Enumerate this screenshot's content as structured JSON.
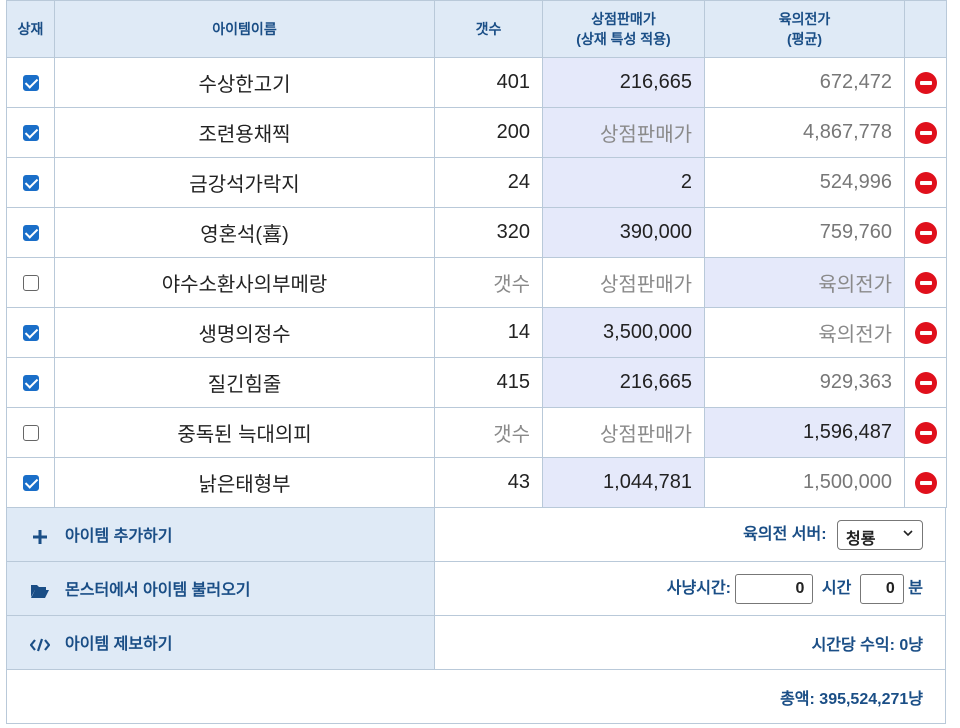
{
  "header": {
    "sell": "상재",
    "name": "아이템이름",
    "count": "갯수",
    "price_line1": "상점판매가",
    "price_line2": "(상재 특성 적용)",
    "est_line1": "육의전가",
    "est_line2": "(평균)"
  },
  "rows": [
    {
      "checked": true,
      "name": "수상한고기",
      "count": "401",
      "price": "216,665",
      "est": "672,472"
    },
    {
      "checked": true,
      "name": "조련용채찍",
      "count": "200",
      "price": "상점판매가",
      "est": "4,867,778"
    },
    {
      "checked": true,
      "name": "금강석가락지",
      "count": "24",
      "price": "2",
      "est": "524,996"
    },
    {
      "checked": true,
      "name": "영혼석(喜)",
      "count": "320",
      "price": "390,000",
      "est": "759,760"
    },
    {
      "checked": false,
      "name": "야수소환사의부메랑",
      "count": "갯수",
      "price": "상점판매가",
      "est": "육의전가"
    },
    {
      "checked": true,
      "name": "생명의정수",
      "count": "14",
      "price": "3,500,000",
      "est": "육의전가"
    },
    {
      "checked": true,
      "name": "질긴힘줄",
      "count": "415",
      "price": "216,665",
      "est": "929,363"
    },
    {
      "checked": false,
      "name": "중독된 늑대의피",
      "count": "갯수",
      "price": "상점판매가",
      "est": "1,596,487"
    },
    {
      "checked": true,
      "name": "낡은태형부",
      "count": "43",
      "price": "1,044,781",
      "est": "1,500,000"
    }
  ],
  "footer": {
    "add_item": "아이템 추가하기",
    "load_monster": "몬스터에서 아이템 불러오기",
    "report_item": "아이템 제보하기",
    "server_label": "육의전 서버:",
    "server_value": "청룡",
    "hunt_label": "사냥시간:",
    "hours_value": "0",
    "hours_unit": "시간",
    "minutes_value": "0",
    "minutes_unit": "분",
    "hourly_income": "시간당 수익: 0냥",
    "total": "총액: 395,524,271냥"
  }
}
